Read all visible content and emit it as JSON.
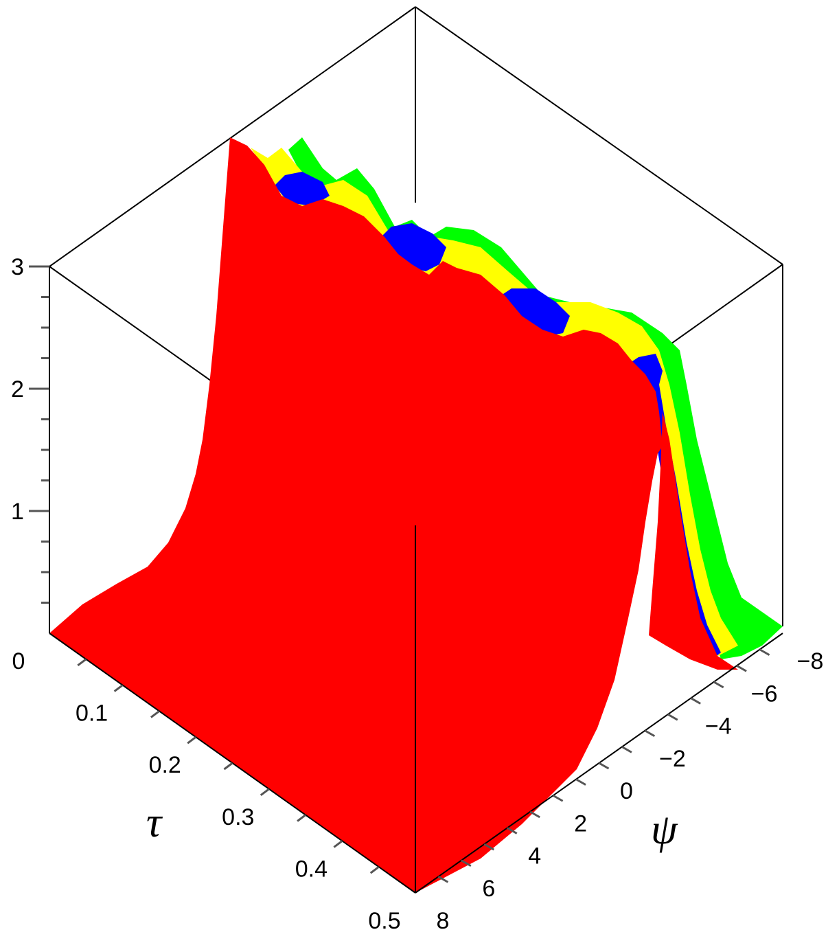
{
  "chart_data": {
    "type": "surface3d",
    "title": "",
    "axes": {
      "tau": {
        "label": "τ",
        "range": [
          0,
          0.5
        ],
        "ticks": [
          "0",
          "0.1",
          "0.2",
          "0.3",
          "0.4",
          "0.5"
        ]
      },
      "psi": {
        "label": "ψ",
        "range": [
          8,
          -8
        ],
        "ticks": [
          "8",
          "6",
          "4",
          "2",
          "0",
          "−2",
          "−4",
          "−6",
          "−8"
        ]
      },
      "z": {
        "label": "",
        "range": [
          0,
          3
        ],
        "ticks": [
          "1",
          "2",
          "3"
        ]
      }
    },
    "series_colors": [
      "#00ff00",
      "#ffff00",
      "#0000ff",
      "#ff0000"
    ],
    "ridge_profile": {
      "tau": [
        0,
        0.05,
        0.1,
        0.15,
        0.2,
        0.25,
        0.3,
        0.35,
        0.4,
        0.45,
        0.5
      ],
      "peak": [
        3.2,
        3.05,
        3.0,
        2.85,
        2.9,
        2.75,
        2.75,
        2.6,
        2.6,
        2.55,
        2.1
      ]
    }
  }
}
